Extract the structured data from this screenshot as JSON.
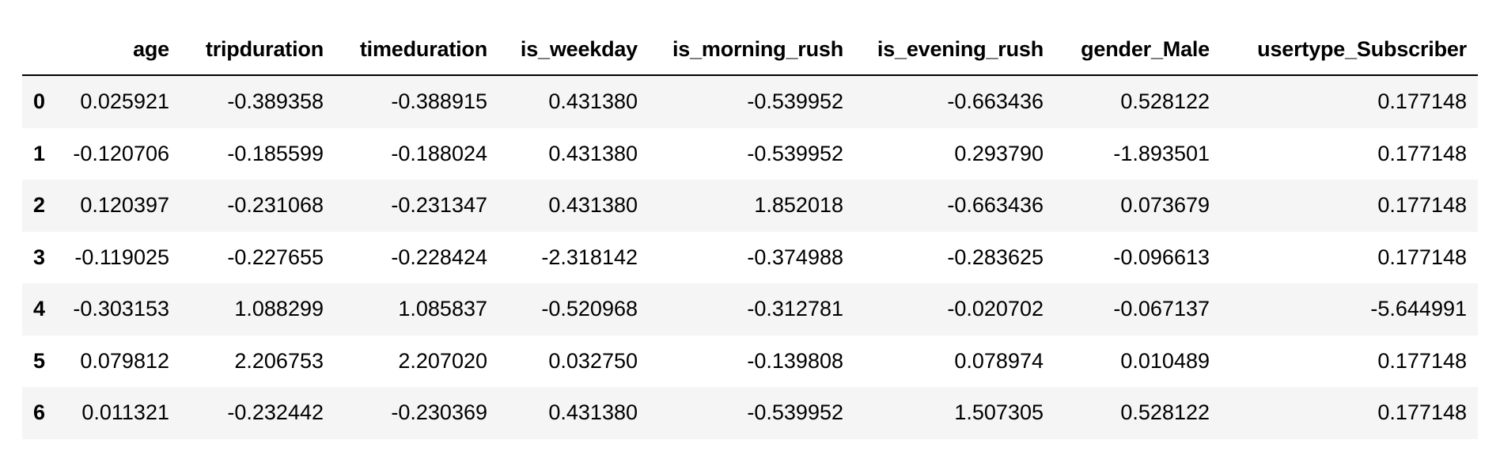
{
  "table": {
    "columns": [
      "age",
      "tripduration",
      "timeduration",
      "is_weekday",
      "is_morning_rush",
      "is_evening_rush",
      "gender_Male",
      "usertype_Subscriber"
    ],
    "rows": [
      {
        "index": "0",
        "cells": [
          "0.025921",
          "-0.389358",
          "-0.388915",
          "0.431380",
          "-0.539952",
          "-0.663436",
          "0.528122",
          "0.177148"
        ]
      },
      {
        "index": "1",
        "cells": [
          "-0.120706",
          "-0.185599",
          "-0.188024",
          "0.431380",
          "-0.539952",
          "0.293790",
          "-1.893501",
          "0.177148"
        ]
      },
      {
        "index": "2",
        "cells": [
          "0.120397",
          "-0.231068",
          "-0.231347",
          "0.431380",
          "1.852018",
          "-0.663436",
          "0.073679",
          "0.177148"
        ]
      },
      {
        "index": "3",
        "cells": [
          "-0.119025",
          "-0.227655",
          "-0.228424",
          "-2.318142",
          "-0.374988",
          "-0.283625",
          "-0.096613",
          "0.177148"
        ]
      },
      {
        "index": "4",
        "cells": [
          "-0.303153",
          "1.088299",
          "1.085837",
          "-0.520968",
          "-0.312781",
          "-0.020702",
          "-0.067137",
          "-5.644991"
        ]
      },
      {
        "index": "5",
        "cells": [
          "0.079812",
          "2.206753",
          "2.207020",
          "0.032750",
          "-0.139808",
          "0.078974",
          "0.010489",
          "0.177148"
        ]
      },
      {
        "index": "6",
        "cells": [
          "0.011321",
          "-0.232442",
          "-0.230369",
          "0.431380",
          "-0.539952",
          "1.507305",
          "0.528122",
          "0.177148"
        ]
      }
    ]
  },
  "colors": {
    "stripe": "#f5f5f5",
    "rule": "#000000",
    "text": "#000000"
  }
}
